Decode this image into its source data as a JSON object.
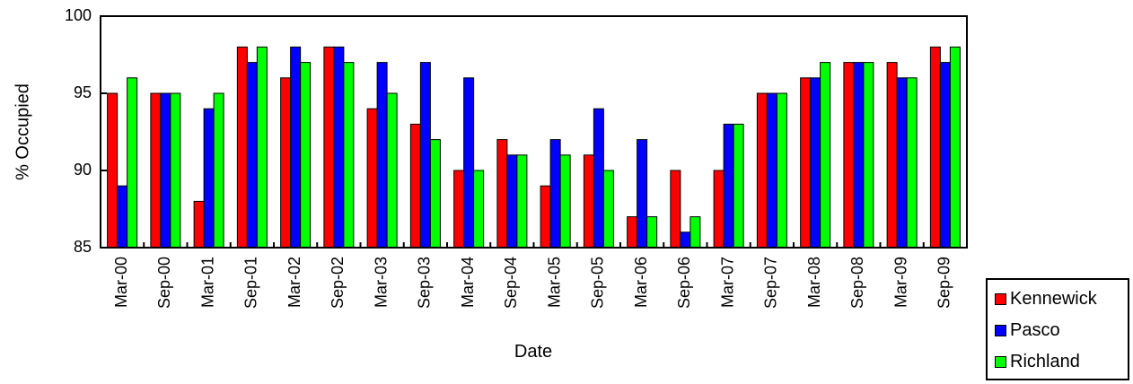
{
  "chart_data": {
    "type": "bar",
    "title": "",
    "xlabel": "Date",
    "ylabel": "% Occupied",
    "ylim": [
      85,
      100
    ],
    "yticks": [
      85,
      90,
      95,
      100
    ],
    "grid": false,
    "legend_position": "bottom-right",
    "categories": [
      "Mar-00",
      "Sep-00",
      "Mar-01",
      "Sep-01",
      "Mar-02",
      "Sep-02",
      "Mar-03",
      "Sep-03",
      "Mar-04",
      "Sep-04",
      "Mar-05",
      "Sep-05",
      "Mar-06",
      "Sep-06",
      "Mar-07",
      "Sep-07",
      "Mar-08",
      "Sep-08",
      "Mar-09",
      "Sep-09"
    ],
    "series": [
      {
        "name": "Kennewick",
        "color": "#ff0000",
        "values": [
          95,
          95,
          88,
          98,
          96,
          98,
          94,
          93,
          90,
          92,
          89,
          91,
          87,
          90,
          90,
          95,
          96,
          97,
          97,
          98
        ]
      },
      {
        "name": "Pasco",
        "color": "#0000ff",
        "values": [
          89,
          95,
          94,
          97,
          98,
          98,
          97,
          97,
          96,
          91,
          92,
          94,
          92,
          86,
          93,
          95,
          96,
          97,
          96,
          97
        ]
      },
      {
        "name": "Richland",
        "color": "#00ff00",
        "values": [
          96,
          95,
          95,
          98,
          97,
          97,
          95,
          92,
          90,
          91,
          91,
          90,
          87,
          87,
          93,
          95,
          97,
          97,
          96,
          98
        ]
      }
    ]
  }
}
